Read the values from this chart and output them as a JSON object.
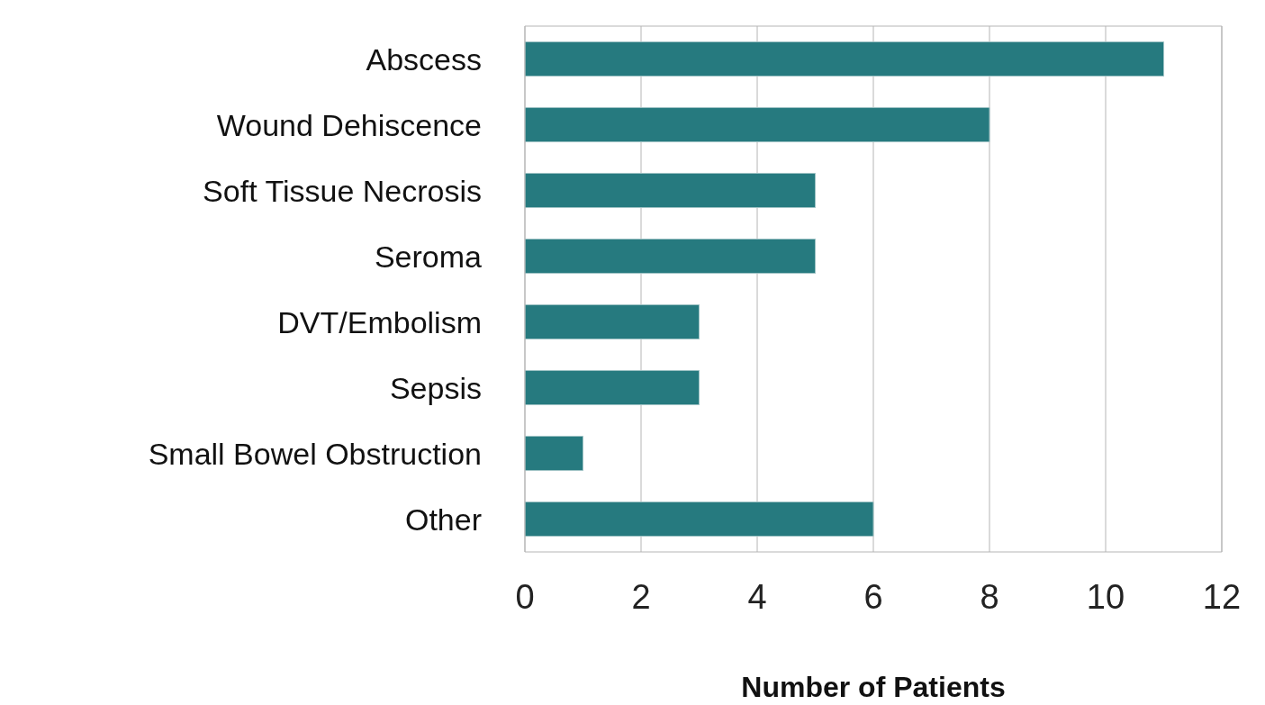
{
  "chart_data": {
    "type": "bar",
    "orientation": "horizontal",
    "xlabel": "Number of Patients",
    "categories": [
      "Abscess",
      "Wound Dehiscence",
      "Soft Tissue Necrosis",
      "Seroma",
      "DVT/Embolism",
      "Sepsis",
      "Small Bowel Obstruction",
      "Other"
    ],
    "values": [
      11,
      8,
      5,
      5,
      3,
      3,
      1,
      6
    ],
    "color": "#267a7f",
    "xlim": [
      0,
      12
    ],
    "xticks": [
      0,
      2,
      4,
      6,
      8,
      10,
      12
    ],
    "grid": "x"
  }
}
